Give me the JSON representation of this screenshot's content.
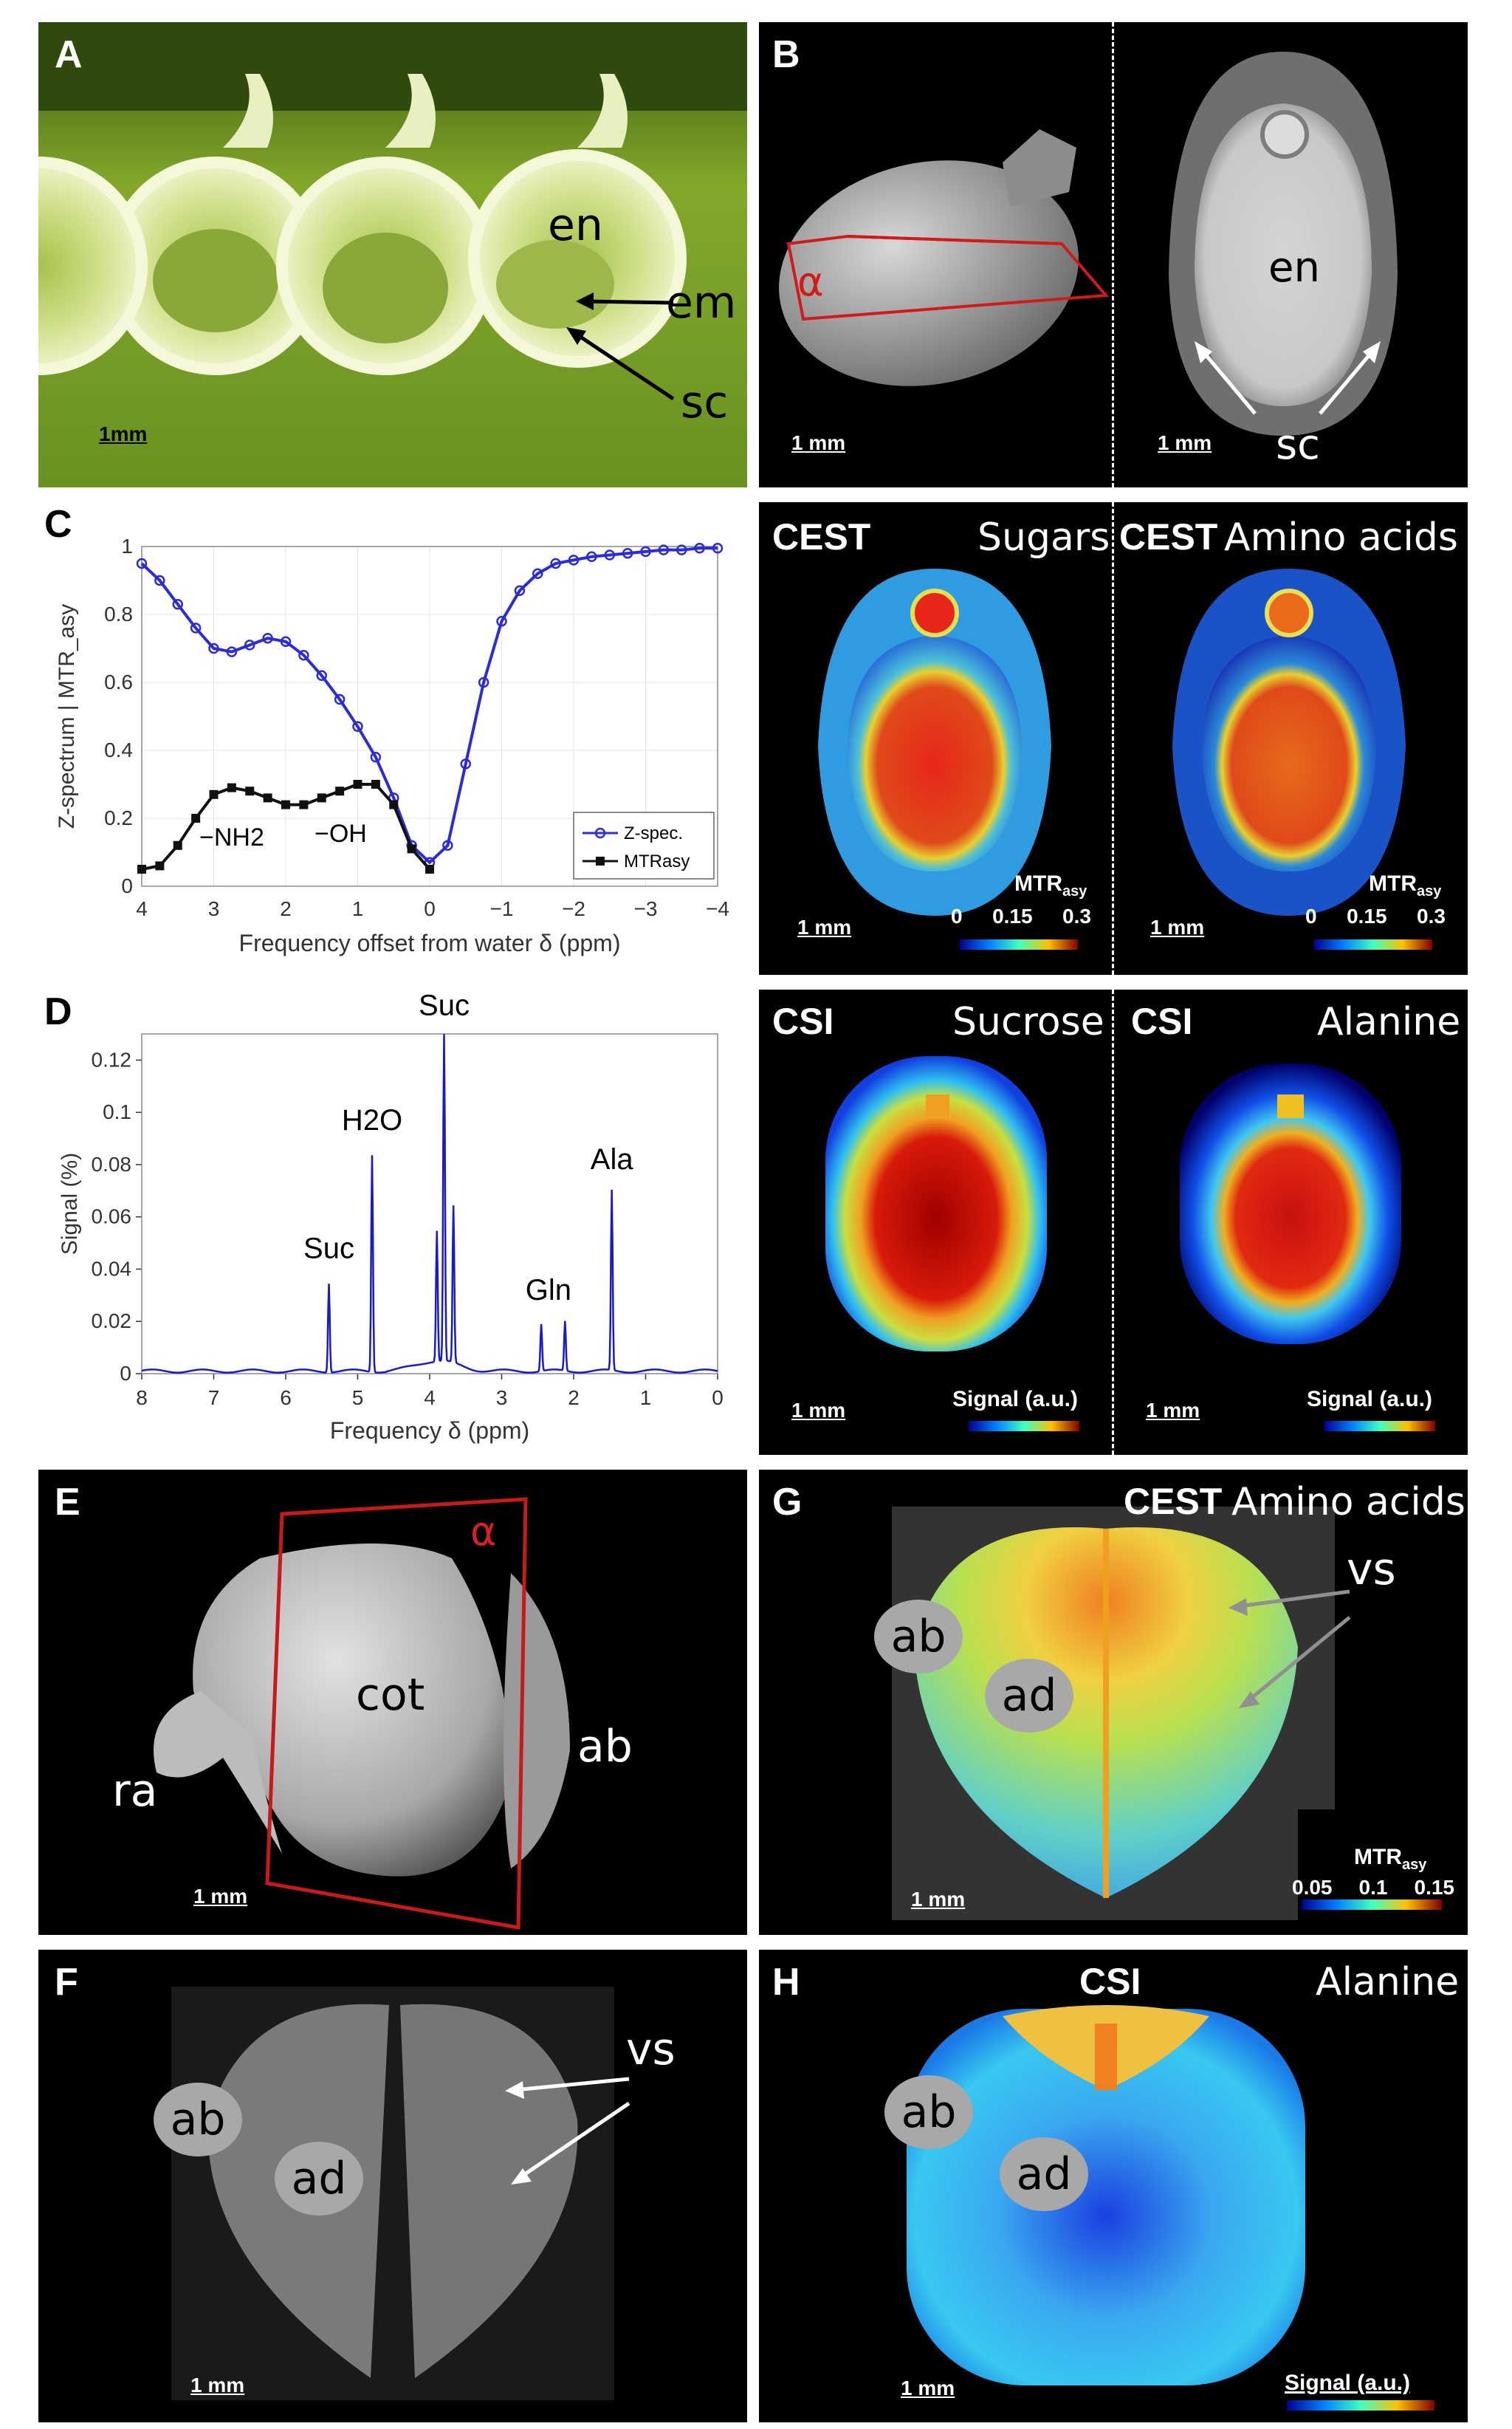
{
  "panelA": {
    "letter": "A",
    "labels": {
      "en": "en",
      "em": "em",
      "sc": "sc"
    },
    "scale": "1mm"
  },
  "panelB": {
    "letter": "B",
    "alpha": "α",
    "scale_left": "1 mm",
    "scale_right": "1 mm",
    "en": "en",
    "sc": "sc"
  },
  "panelC": {
    "letter": "C"
  },
  "cest": {
    "left_tag": "CEST",
    "left_title": "Sugars",
    "right_tag": "CEST",
    "right_title": "Amino acids",
    "scale_left": "1 mm",
    "scale_right": "1 mm",
    "colorbar_label": "MTR",
    "colorbar_sub": "asy",
    "ticks": [
      "0",
      "0.15",
      "0.3"
    ]
  },
  "panelD": {
    "letter": "D"
  },
  "csi": {
    "left_tag": "CSI",
    "left_title": "Sucrose",
    "right_tag": "CSI",
    "right_title": "Alanine",
    "scale_left": "1 mm",
    "scale_right": "1 mm",
    "colorbar_label": "Signal (a.u.)"
  },
  "panelE": {
    "letter": "E",
    "alpha": "α",
    "cot": "cot",
    "ab": "ab",
    "ra": "ra",
    "scale": "1 mm"
  },
  "panelF": {
    "letter": "F",
    "ab": "ab",
    "ad": "ad",
    "vs": "vs",
    "scale": "1 mm"
  },
  "panelG": {
    "letter": "G",
    "tag": "CEST",
    "title": "Amino acids",
    "ab": "ab",
    "ad": "ad",
    "vs": "vs",
    "scale": "1 mm",
    "colorbar_label": "MTR",
    "colorbar_sub": "asy",
    "ticks": [
      "0.05",
      "0.1",
      "0.15"
    ]
  },
  "panelH": {
    "letter": "H",
    "tag": "CSI",
    "title": "Alanine",
    "ab": "ab",
    "ad": "ad",
    "scale": "1 mm",
    "colorbar_label": "Signal (a.u.)"
  },
  "chart_data": [
    {
      "type": "line",
      "panel": "C",
      "xlabel": "Frequency offset from water δ (ppm)",
      "ylabel": "Z-spectrum | MTR_asy",
      "xlim": [
        4,
        -4
      ],
      "ylim": [
        0,
        1
      ],
      "xticks": [
        "4",
        "3",
        "2",
        "1",
        "0",
        "−1",
        "−2",
        "−3",
        "−4"
      ],
      "yticks": [
        "0",
        "0.2",
        "0.4",
        "0.6",
        "0.8",
        "1"
      ],
      "annotations": [
        "−NH2",
        "−OH"
      ],
      "series": [
        {
          "name": "Z-spec.",
          "color": "#2b2bd9",
          "x": [
            4,
            3.75,
            3.5,
            3.25,
            3,
            2.75,
            2.5,
            2.25,
            2,
            1.75,
            1.5,
            1.25,
            1,
            0.75,
            0.5,
            0.25,
            0,
            -0.25,
            -0.5,
            -0.75,
            -1,
            -1.25,
            -1.5,
            -1.75,
            -2,
            -2.25,
            -2.5,
            -2.75,
            -3,
            -3.25,
            -3.5,
            -3.75,
            -4
          ],
          "y": [
            0.95,
            0.9,
            0.83,
            0.76,
            0.7,
            0.69,
            0.71,
            0.73,
            0.72,
            0.68,
            0.62,
            0.55,
            0.47,
            0.38,
            0.26,
            0.12,
            0.07,
            0.12,
            0.36,
            0.6,
            0.78,
            0.87,
            0.92,
            0.95,
            0.96,
            0.97,
            0.975,
            0.98,
            0.985,
            0.99,
            0.99,
            0.995,
            0.995
          ]
        },
        {
          "name": "MTRasy",
          "color": "#111111",
          "x": [
            4,
            3.75,
            3.5,
            3.25,
            3,
            2.75,
            2.5,
            2.25,
            2,
            1.75,
            1.5,
            1.25,
            1,
            0.75,
            0.5,
            0.25,
            0
          ],
          "y": [
            0.05,
            0.06,
            0.12,
            0.2,
            0.27,
            0.29,
            0.28,
            0.26,
            0.24,
            0.24,
            0.26,
            0.28,
            0.3,
            0.3,
            0.24,
            0.11,
            0.05
          ]
        }
      ]
    },
    {
      "type": "line",
      "panel": "D",
      "xlabel": "Frequency δ (ppm)",
      "ylabel": "Signal (%)",
      "xlim": [
        8,
        0
      ],
      "ylim": [
        0,
        0.13
      ],
      "xticks": [
        "8",
        "7",
        "6",
        "5",
        "4",
        "3",
        "2",
        "1",
        "0"
      ],
      "yticks": [
        "0",
        "0.02",
        "0.04",
        "0.06",
        "0.08",
        "0.1",
        "0.12"
      ],
      "peak_labels": [
        "Suc",
        "H2O",
        "Suc",
        "Gln",
        "Ala"
      ],
      "peaks": [
        {
          "ppm": 5.4,
          "height": 0.034
        },
        {
          "ppm": 4.8,
          "height": 0.083
        },
        {
          "ppm": 3.8,
          "height": 0.131
        },
        {
          "ppm": 3.67,
          "height": 0.06
        },
        {
          "ppm": 3.9,
          "height": 0.05
        },
        {
          "ppm": 2.45,
          "height": 0.018
        },
        {
          "ppm": 2.12,
          "height": 0.019
        },
        {
          "ppm": 1.47,
          "height": 0.069
        }
      ]
    }
  ]
}
